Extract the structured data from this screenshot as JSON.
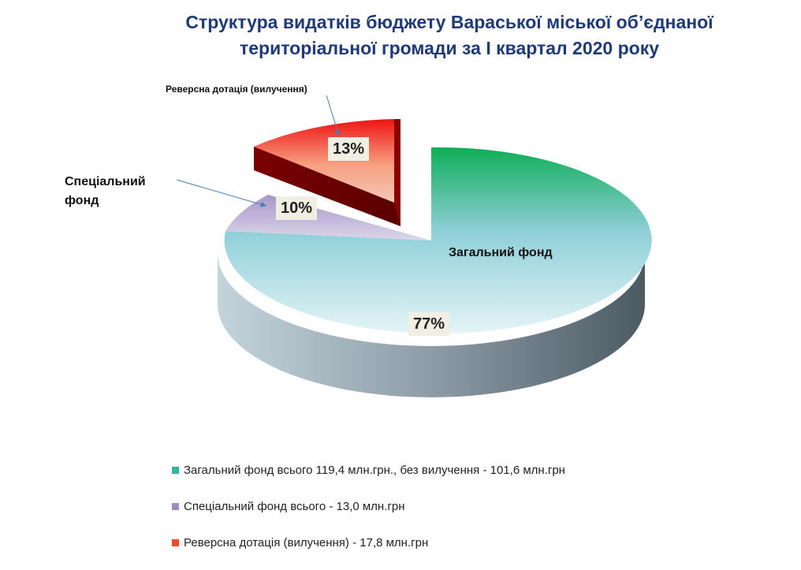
{
  "chart_data": {
    "type": "pie",
    "title_line1": "Структура видатків бюджету Вараської міської об’єднаної",
    "title_line2": "територіальної громади  за І квартал  2020 року",
    "slices": [
      {
        "key": "general",
        "label": "Загальний  фонд",
        "value": 77,
        "value_label": "77%",
        "color": "#8fcfd8",
        "legend": "Загальний фонд всього 119,4 млн.грн., без вилучення - 101,6 млн.грн"
      },
      {
        "key": "special",
        "label": "Спеціальний фонд",
        "value": 10,
        "value_label": "10%",
        "color": "#c6b9dc",
        "legend": "Спеціальний фонд всього - 13,0 млн.грн"
      },
      {
        "key": "reverse",
        "label": "Реверсна дотація (вилучення)",
        "value": 13,
        "value_label": "13%",
        "color": "#f25c3c",
        "legend": "Реверсна дотація (вилучення) - 17,8 млн.грн"
      }
    ],
    "colors": {
      "general_top": "#18b060",
      "special_top": "#b4a6d0",
      "reverse_top": "#ee1c1c",
      "title": "#1f3a78"
    }
  }
}
